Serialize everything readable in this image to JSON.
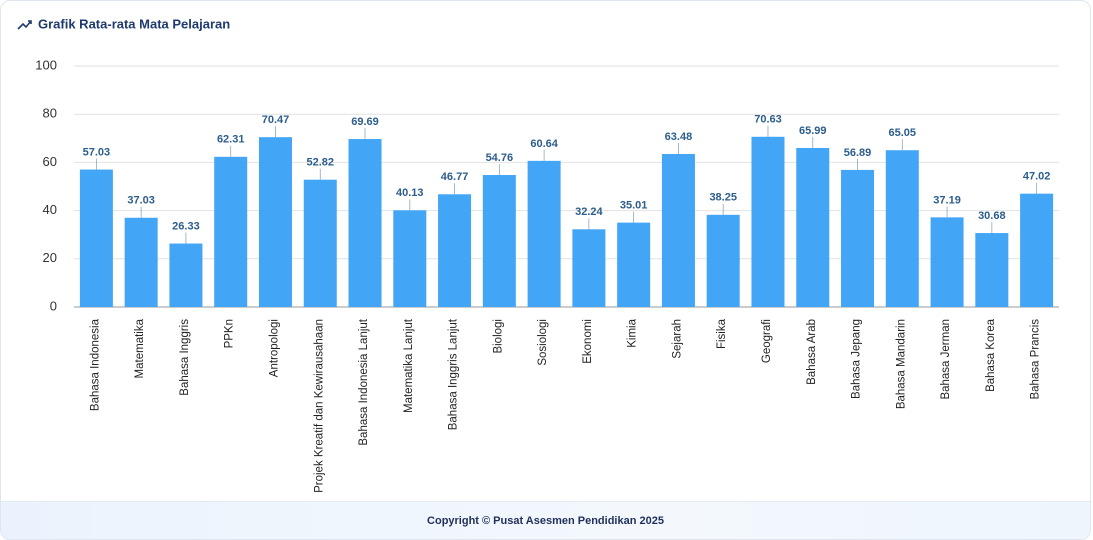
{
  "chart_data": {
    "type": "bar",
    "title": "Grafik Rata-rata Mata Pelajaran",
    "categories": [
      "Bahasa Indonesia",
      "Matematika",
      "Bahasa Inggris",
      "PPKn",
      "Antropologi",
      "Projek Kreatif dan Kewirausahaan",
      "Bahasa Indonesia Lanjut",
      "Matematika Lanjut",
      "Bahasa Inggris Lanjut",
      "Biologi",
      "Sosiologi",
      "Ekonomi",
      "Kimia",
      "Sejarah",
      "Fisika",
      "Geografi",
      "Bahasa Arab",
      "Bahasa Jepang",
      "Bahasa Mandarin",
      "Bahasa Jerman",
      "Bahasa Korea",
      "Bahasa Prancis"
    ],
    "values": [
      57.03,
      37.03,
      26.33,
      62.31,
      70.47,
      52.82,
      69.69,
      40.13,
      46.77,
      54.76,
      60.64,
      32.24,
      35.01,
      63.48,
      38.25,
      70.63,
      65.99,
      56.89,
      65.05,
      37.19,
      30.68,
      47.02
    ],
    "color": "#42a5f5",
    "ylim": [
      0,
      100
    ],
    "yticks": [
      0,
      20,
      40,
      60,
      80,
      100
    ],
    "grid": true
  },
  "footer": "Copyright © Pusat Asesmen Pendidikan 2025"
}
